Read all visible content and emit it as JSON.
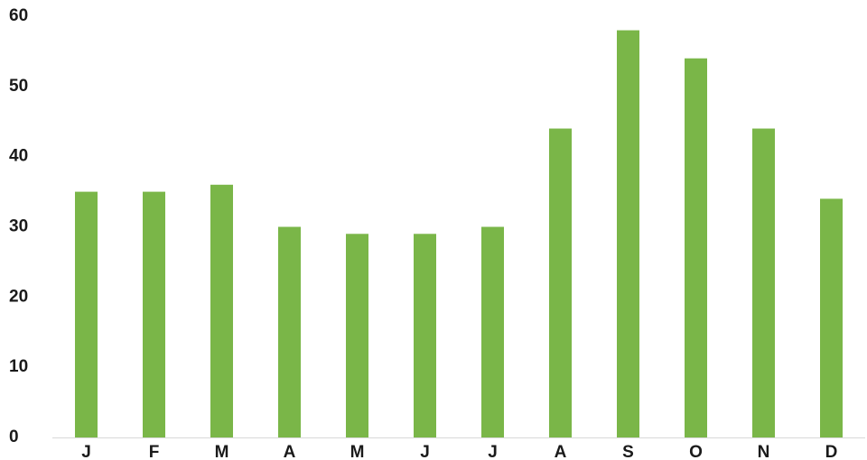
{
  "chart_data": {
    "type": "bar",
    "title": "",
    "xlabel": "",
    "ylabel": "",
    "categories": [
      "J",
      "F",
      "M",
      "A",
      "M",
      "J",
      "J",
      "A",
      "S",
      "O",
      "N",
      "D"
    ],
    "values": [
      35,
      35,
      36,
      30,
      29,
      29,
      30,
      44,
      58,
      54,
      44,
      34
    ],
    "ylim": [
      0,
      60
    ],
    "yticks": [
      0,
      10,
      20,
      30,
      40,
      50,
      60
    ],
    "bar_color": "#7ab648",
    "axis_color": "#d9d9d9",
    "grid": false,
    "legend": "none"
  }
}
